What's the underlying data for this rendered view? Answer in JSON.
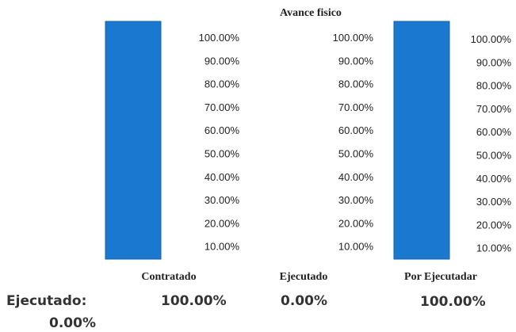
{
  "chart_data": {
    "type": "bar",
    "title": "Avance fisico",
    "categories": [
      "Contratado",
      "Ejecutado",
      "Por Ejecutadar"
    ],
    "values": [
      100.0,
      0.0,
      100.0
    ],
    "value_labels": [
      "100.00%",
      "0.00%",
      "100.00%"
    ],
    "ytick_labels": [
      "100.00%",
      "90.00%",
      "80.00%",
      "70.00%",
      "60.00%",
      "50.00%",
      "40.00%",
      "30.00%",
      "20.00%",
      "10.00%"
    ],
    "ylim": [
      0,
      100
    ],
    "bar_color": "#1a78d0",
    "grid": false,
    "legend": "none"
  },
  "summary": {
    "label": "Ejecutado:",
    "value": "0.00%"
  }
}
